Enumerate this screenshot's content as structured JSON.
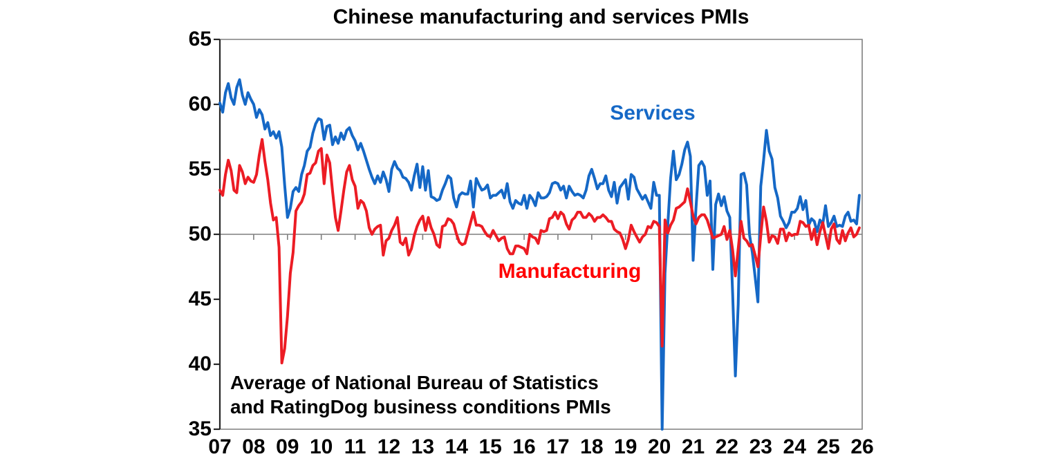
{
  "title": "Chinese manufacturing and services PMIs",
  "annotation": {
    "line1": "Average of National Bureau of Statistics",
    "line2": "and RatingDog business conditions PMIs"
  },
  "colors": {
    "services_line": "#1568C6",
    "services_label": "#1568C6",
    "manufacturing_line": "#EC1C24",
    "manufacturing_label": "#FF0000",
    "axis": "#262626",
    "frame": "#7F7F7F",
    "zero_line": "#7F7F7F",
    "text": "#000000"
  },
  "chart_data": {
    "type": "line",
    "title": "Chinese manufacturing and services PMIs",
    "annotation_line1": "Average of National Bureau of Statistics",
    "annotation_line2": "and RatingDog business conditions PMIs",
    "frequency": "monthly",
    "x_start": "2007-01",
    "x_end": "2025-12",
    "ylim": [
      35,
      65
    ],
    "y_ticks": [
      35,
      40,
      45,
      50,
      55,
      60,
      65
    ],
    "x_tick_labels": [
      "07",
      "08",
      "09",
      "10",
      "11",
      "12",
      "13",
      "14",
      "15",
      "16",
      "17",
      "18",
      "19",
      "20",
      "21",
      "22",
      "23",
      "24",
      "25",
      "26"
    ],
    "grid": "horizontal line at 50 only, with year tick marks on it",
    "legend_position": "inline text labels on chart",
    "series": [
      {
        "name": "Services",
        "color": "#1568C6",
        "values": [
          60.1,
          59.4,
          60.9,
          61.6,
          60.5,
          60.0,
          61.3,
          61.9,
          60.7,
          60.0,
          60.9,
          60.4,
          60.0,
          59.0,
          59.6,
          59.2,
          58.1,
          58.6,
          57.6,
          57.9,
          57.4,
          57.9,
          56.7,
          53.8,
          51.3,
          52.0,
          53.3,
          53.6,
          53.3,
          54.6,
          55.3,
          56.4,
          56.7,
          57.8,
          58.5,
          58.9,
          58.8,
          57.3,
          58.3,
          58.4,
          56.9,
          57.5,
          57.0,
          57.8,
          57.3,
          58.0,
          58.2,
          57.6,
          57.2,
          56.5,
          57.0,
          56.4,
          55.7,
          55.0,
          54.4,
          53.9,
          54.5,
          54.0,
          54.8,
          54.2,
          53.3,
          55.0,
          55.6,
          55.1,
          54.9,
          54.4,
          54.3,
          54.0,
          53.4,
          54.5,
          55.4,
          53.6,
          55.2,
          53.4,
          54.9,
          52.9,
          52.8,
          52.6,
          52.7,
          53.4,
          53.9,
          54.5,
          54.3,
          52.8,
          52.1,
          53.0,
          53.2,
          53.1,
          53.1,
          54.1,
          52.1,
          54.3,
          53.8,
          53.4,
          53.5,
          53.8,
          52.8,
          53.0,
          53.0,
          53.2,
          53.4,
          52.8,
          53.9,
          52.5,
          52.0,
          52.6,
          52.4,
          52.3,
          53.0,
          52.0,
          53.0,
          52.7,
          52.2,
          53.2,
          52.8,
          52.8,
          52.9,
          53.2,
          53.9,
          54.0,
          53.9,
          53.4,
          53.7,
          52.8,
          53.7,
          53.3,
          53.0,
          53.1,
          53.0,
          52.8,
          53.4,
          54.5,
          55.0,
          54.3,
          53.5,
          53.9,
          53.9,
          54.5,
          53.4,
          52.9,
          54.0,
          52.4,
          53.6,
          53.9,
          54.2,
          52.7,
          54.6,
          54.4,
          53.5,
          53.1,
          52.7,
          53.0,
          52.5,
          52.0,
          54.0,
          53.0,
          53.0,
          35.0,
          47.0,
          50.8,
          54.3,
          56.4,
          54.2,
          54.6,
          55.4,
          56.5,
          57.1,
          56.0,
          48.0,
          52.0,
          55.3,
          55.6,
          55.2,
          53.0,
          54.1,
          47.3,
          52.3,
          53.1,
          52.2,
          52.9,
          51.8,
          51.3,
          45.5,
          39.1,
          44.6,
          54.6,
          54.7,
          53.8,
          50.0,
          48.6,
          46.7,
          44.8,
          53.7,
          55.7,
          58.0,
          56.4,
          55.8,
          53.6,
          52.8,
          51.4,
          51.0,
          50.5,
          50.9,
          51.7,
          51.7,
          52.0,
          52.9,
          51.9,
          52.6,
          50.7,
          51.2,
          51.0,
          50.2,
          51.1,
          50.8,
          52.2,
          50.6,
          50.9,
          51.4,
          50.6,
          50.7,
          50.6,
          51.4,
          51.7,
          51.0,
          51.1,
          50.8,
          53.0
        ]
      },
      {
        "name": "Manufacturing",
        "color": "#EC1C24",
        "values": [
          53.4,
          53.0,
          54.6,
          55.7,
          54.9,
          53.4,
          53.2,
          55.3,
          54.8,
          53.9,
          54.4,
          54.1,
          54.0,
          54.6,
          56.1,
          57.3,
          55.6,
          54.2,
          52.4,
          51.1,
          51.3,
          49.0,
          40.1,
          41.2,
          43.7,
          47.0,
          48.6,
          51.8,
          52.2,
          52.5,
          53.1,
          54.6,
          54.7,
          55.3,
          55.5,
          56.4,
          56.6,
          53.9,
          56.1,
          55.5,
          53.3,
          51.3,
          50.3,
          51.8,
          53.4,
          54.8,
          55.3,
          54.2,
          53.7,
          52.0,
          52.6,
          52.4,
          51.8,
          50.5,
          50.0,
          50.4,
          50.6,
          50.7,
          48.4,
          49.5,
          49.7,
          50.3,
          50.7,
          51.3,
          49.4,
          49.2,
          49.7,
          48.4,
          48.9,
          49.9,
          50.6,
          51.1,
          51.4,
          50.3,
          51.3,
          50.5,
          50.0,
          49.2,
          49.0,
          50.6,
          50.7,
          51.2,
          51.1,
          50.8,
          50.0,
          49.4,
          49.2,
          49.3,
          50.1,
          50.9,
          51.7,
          50.7,
          50.7,
          50.6,
          50.2,
          49.9,
          49.8,
          50.3,
          49.9,
          49.5,
          49.7,
          49.8,
          48.9,
          48.5,
          48.5,
          49.1,
          49.1,
          49.0,
          48.9,
          48.5,
          50.0,
          49.8,
          49.7,
          49.3,
          50.3,
          50.2,
          50.3,
          51.2,
          51.3,
          51.7,
          51.2,
          51.7,
          51.5,
          50.8,
          50.4,
          51.1,
          51.3,
          51.7,
          51.7,
          51.3,
          51.3,
          51.6,
          51.4,
          51.0,
          51.3,
          51.3,
          51.5,
          51.3,
          51.0,
          51.0,
          50.4,
          50.2,
          50.1,
          49.6,
          48.9,
          49.6,
          50.7,
          50.2,
          49.8,
          49.4,
          49.8,
          50.0,
          50.6,
          50.5,
          51.0,
          50.9,
          50.6,
          41.4,
          51.1,
          50.1,
          50.7,
          51.1,
          52.0,
          52.1,
          52.3,
          52.5,
          53.5,
          52.5,
          51.4,
          50.8,
          51.3,
          51.5,
          51.5,
          51.1,
          50.4,
          49.7,
          49.8,
          49.9,
          50.0,
          50.6,
          49.6,
          50.3,
          48.8,
          46.8,
          48.9,
          51.0,
          49.7,
          49.5,
          49.1,
          49.2,
          48.4,
          47.5,
          49.9,
          52.1,
          51.0,
          49.4,
          49.9,
          49.8,
          49.3,
          50.4,
          50.4,
          49.5,
          50.1,
          49.9,
          50.0,
          50.0,
          51.0,
          50.9,
          50.6,
          50.7,
          49.6,
          50.4,
          49.2,
          50.2,
          50.9,
          49.9,
          48.9,
          50.4,
          50.8,
          49.6,
          49.3,
          50.3,
          49.5,
          50.1,
          50.5,
          49.8,
          50.0,
          50.5
        ]
      }
    ]
  }
}
